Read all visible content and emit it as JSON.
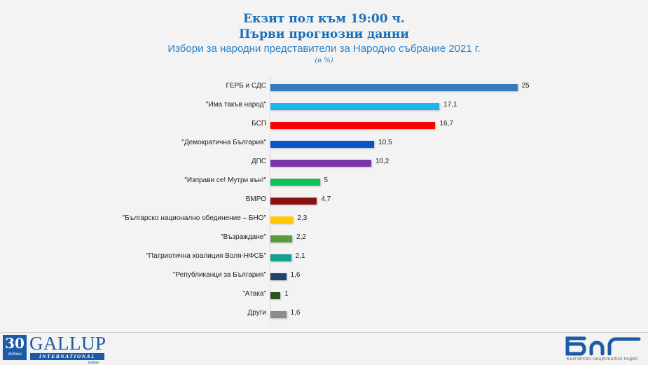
{
  "header": {
    "title_line1": "Екзит пол към 19:00 ч.",
    "title_line2": "Първи прогнозни данни",
    "subtitle": "Избори за народни представители за Народно събрание 2021 г.",
    "unit_note": "(в %)"
  },
  "chart_data": {
    "type": "bar",
    "orientation": "horizontal",
    "title": "Екзит пол към 19:00 ч. Първи прогнозни данни",
    "subtitle": "Избори за народни представители за Народно събрание 2021 г.",
    "xlabel": "",
    "ylabel": "",
    "unit": "%",
    "grid": false,
    "legend": null,
    "data_labels": true,
    "categories": [
      "ГЕРБ и СДС",
      "\"Има такъв народ\"",
      "БСП",
      "\"Демократична България\"",
      "ДПС",
      "\"Изправи се! Мутри вън!\"",
      "ВМРО",
      "\"Българско национално обединение – БНО\"",
      "\"Възраждане\"",
      "\"Патриотична коалиция Воля-НФСБ\"",
      "\"Републиканци за България\"",
      "\"Атака\"",
      "Други"
    ],
    "values": [
      25,
      17.1,
      16.7,
      10.5,
      10.2,
      5,
      4.7,
      2.3,
      2.2,
      2.1,
      1.6,
      1,
      1.6
    ],
    "value_labels": [
      "25",
      "17,1",
      "16,7",
      "10,5",
      "10,2",
      "5",
      "4,7",
      "2,3",
      "2,2",
      "2,1",
      "1,6",
      "1",
      "1,6"
    ],
    "colors": [
      "#3a7bbf",
      "#1ab6f0",
      "#ff0000",
      "#0a55cc",
      "#7a35a8",
      "#11c25a",
      "#8b1010",
      "#ffc800",
      "#5d9a3c",
      "#169e8e",
      "#243f72",
      "#2e5424",
      "#8c8c8c"
    ]
  },
  "footer": {
    "left_logo": {
      "badge_number": "30",
      "badge_text": "години",
      "name": "GALLUP",
      "subname": "INTERNATIONAL",
      "city": "Balkan"
    },
    "right_logo": {
      "mark": "БНР",
      "name": "БЪЛГАРСКО НАЦИОНАЛНО РАДИО",
      "color": "#1a5aa6"
    }
  }
}
